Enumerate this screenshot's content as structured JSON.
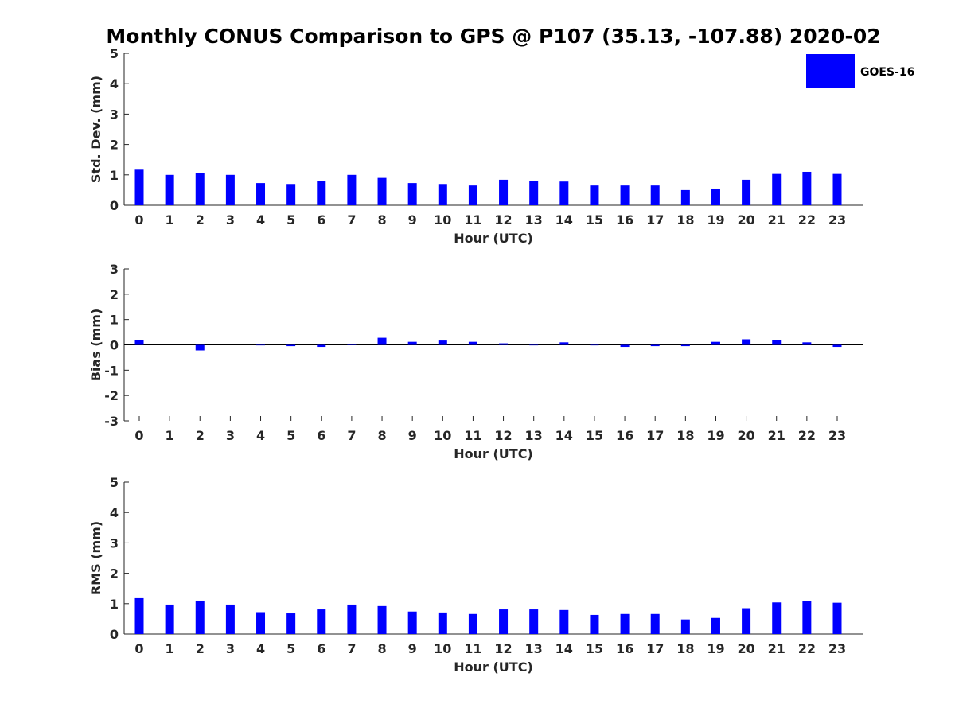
{
  "chart_data": {
    "title": "Monthly CONUS Comparison to GPS @ P107 (35.13, -107.88) 2020-02",
    "legend": {
      "label": "GOES-16",
      "color": "#0000ff",
      "position": "top-right"
    },
    "bar_color": "#0000ff",
    "panels": [
      {
        "type": "bar",
        "ylabel": "Std. Dev. (mm)",
        "xlabel": "Hour (UTC)",
        "ylim": [
          0,
          5
        ],
        "yticks": [
          "0",
          "1",
          "2",
          "3",
          "4",
          "5"
        ],
        "categories": [
          "0",
          "1",
          "2",
          "3",
          "4",
          "5",
          "6",
          "7",
          "8",
          "9",
          "10",
          "11",
          "12",
          "13",
          "14",
          "15",
          "16",
          "17",
          "18",
          "19",
          "20",
          "21",
          "22",
          "23"
        ],
        "series": [
          {
            "name": "GOES-16",
            "values": [
              1.17,
              1.0,
              1.07,
              1.0,
              0.73,
              0.7,
              0.81,
              1.0,
              0.9,
              0.73,
              0.7,
              0.65,
              0.84,
              0.81,
              0.78,
              0.65,
              0.65,
              0.65,
              0.5,
              0.55,
              0.84,
              1.03,
              1.1,
              1.03
            ]
          }
        ]
      },
      {
        "type": "bar",
        "ylabel": "Bias (mm)",
        "xlabel": "Hour (UTC)",
        "ylim": [
          -3,
          3
        ],
        "yticks": [
          "-3",
          "-2",
          "-1",
          "0",
          "1",
          "2",
          "3"
        ],
        "categories": [
          "0",
          "1",
          "2",
          "3",
          "4",
          "5",
          "6",
          "7",
          "8",
          "9",
          "10",
          "11",
          "12",
          "13",
          "14",
          "15",
          "16",
          "17",
          "18",
          "19",
          "20",
          "21",
          "22",
          "23"
        ],
        "series": [
          {
            "name": "GOES-16",
            "values": [
              0.18,
              0.0,
              -0.22,
              0.0,
              -0.02,
              -0.05,
              -0.08,
              0.03,
              0.28,
              0.12,
              0.17,
              0.12,
              0.06,
              -0.02,
              0.1,
              -0.02,
              -0.08,
              -0.05,
              -0.05,
              0.12,
              0.22,
              0.18,
              0.1,
              -0.08
            ]
          }
        ]
      },
      {
        "type": "bar",
        "ylabel": "RMS (mm)",
        "xlabel": "Hour (UTC)",
        "ylim": [
          0,
          5
        ],
        "yticks": [
          "0",
          "1",
          "2",
          "3",
          "4",
          "5"
        ],
        "categories": [
          "0",
          "1",
          "2",
          "3",
          "4",
          "5",
          "6",
          "7",
          "8",
          "9",
          "10",
          "11",
          "12",
          "13",
          "14",
          "15",
          "16",
          "17",
          "18",
          "19",
          "20",
          "21",
          "22",
          "23"
        ],
        "series": [
          {
            "name": "GOES-16",
            "values": [
              1.18,
              0.97,
              1.1,
              0.97,
              0.72,
              0.68,
              0.81,
              0.97,
              0.92,
              0.74,
              0.71,
              0.66,
              0.81,
              0.81,
              0.79,
              0.63,
              0.66,
              0.66,
              0.48,
              0.53,
              0.85,
              1.04,
              1.09,
              1.03
            ]
          }
        ]
      }
    ]
  }
}
